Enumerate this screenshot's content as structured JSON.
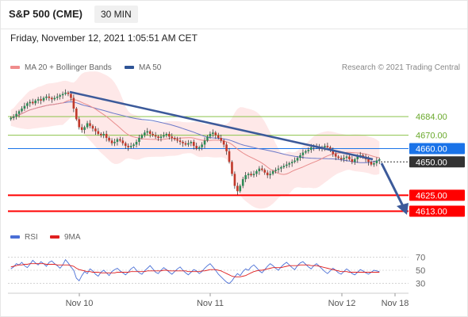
{
  "header": {
    "title": "S&P 500 (CME)",
    "interval": "30 MIN",
    "timestamp": "Friday, November 12, 2021 1:05:51 AM CET"
  },
  "legend": {
    "ma20_label": "MA 20 + Bollinger Bands",
    "ma50_label": "MA 50",
    "research": "Research © 2021 Trading Central",
    "rsi_label": "RSI",
    "ma9_label": "9MA"
  },
  "colors": {
    "candle_up": "#2e8b57",
    "candle_down": "#c0392b",
    "bollinger_fill": "#fde0e0",
    "ma20": "#e88c8c",
    "ma50": "#6a78c8",
    "trendline": "#3c5a9a",
    "support": "#ff0000",
    "resistance_blue": "#1a73e8",
    "resistance_green": "#8bc34a",
    "current_price": "#333333",
    "rsi_line": "#4a6fd6",
    "rsi_ma": "#e02020"
  },
  "chart_data": {
    "type": "candlestick",
    "y_range": [
      4602,
      4712
    ],
    "levels": [
      {
        "value": 4684.0,
        "label": "4684.00",
        "kind": "resistance-green"
      },
      {
        "value": 4670.0,
        "label": "4670.00",
        "kind": "resistance-green"
      },
      {
        "value": 4660.0,
        "label": "4660.00",
        "kind": "resistance-blue"
      },
      {
        "value": 4650.0,
        "label": "4650.00",
        "kind": "current-price"
      },
      {
        "value": 4625.0,
        "label": "4625.00",
        "kind": "support"
      },
      {
        "value": 4613.0,
        "label": "4613.00",
        "kind": "support"
      }
    ],
    "x_labels": [
      "Nov 10",
      "Nov 11",
      "Nov 12",
      "Nov 18"
    ],
    "close": [
      4683,
      4684,
      4686,
      4688,
      4690,
      4692,
      4694,
      4695,
      4694,
      4696,
      4697,
      4696,
      4698,
      4699,
      4698,
      4697,
      4698,
      4699,
      4700,
      4701,
      4702,
      4701,
      4698,
      4690,
      4682,
      4676,
      4674,
      4676,
      4679,
      4677,
      4675,
      4673,
      4671,
      4670,
      4671,
      4668,
      4666,
      4664,
      4665,
      4667,
      4666,
      4664,
      4662,
      4661,
      4662,
      4663,
      4665,
      4668,
      4670,
      4672,
      4673,
      4671,
      4670,
      4669,
      4668,
      4669,
      4670,
      4671,
      4669,
      4668,
      4667,
      4666,
      4665,
      4664,
      4663,
      4664,
      4665,
      4662,
      4660,
      4661,
      4663,
      4666,
      4669,
      4671,
      4672,
      4670,
      4668,
      4666,
      4663,
      4658,
      4650,
      4641,
      4632,
      4628,
      4632,
      4637,
      4640,
      4641,
      4640,
      4641,
      4643,
      4645,
      4644,
      4642,
      4640,
      4641,
      4643,
      4644,
      4645,
      4646,
      4647,
      4648,
      4649,
      4650,
      4651,
      4653,
      4655,
      4657,
      4658,
      4659,
      4661,
      4662,
      4661,
      4660,
      4661,
      4662,
      4661,
      4659,
      4656,
      4654,
      4653,
      4652,
      4653,
      4654,
      4652,
      4650,
      4652,
      4654,
      4655,
      4654,
      4652,
      4650,
      4648,
      4649,
      4651,
      4652
    ],
    "yticks_rsi": [
      70,
      50,
      30
    ],
    "rsi_range": [
      20,
      80
    ],
    "rsi": [
      52,
      55,
      60,
      58,
      62,
      57,
      54,
      59,
      65,
      61,
      58,
      63,
      60,
      56,
      62,
      64,
      60,
      57,
      53,
      58,
      66,
      61,
      55,
      50,
      38,
      34,
      42,
      48,
      45,
      52,
      49,
      44,
      41,
      47,
      50,
      46,
      42,
      48,
      51,
      53,
      49,
      46,
      43,
      47,
      52,
      55,
      50,
      46,
      44,
      49,
      53,
      57,
      52,
      47,
      45,
      50,
      54,
      51,
      47,
      44,
      48,
      52,
      55,
      50,
      46,
      43,
      47,
      51,
      49,
      45,
      48,
      53,
      57,
      60,
      55,
      50,
      44,
      40,
      36,
      32,
      30,
      34,
      40,
      45,
      42,
      48,
      52,
      50,
      55,
      58,
      54,
      49,
      46,
      51,
      56,
      60,
      57,
      53,
      50,
      55,
      59,
      62,
      58,
      54,
      51,
      57,
      61,
      63,
      59,
      55,
      52,
      57,
      60,
      56,
      52,
      48,
      45,
      49,
      53,
      50,
      46,
      44,
      48,
      52,
      49,
      45,
      43,
      47,
      51,
      49,
      46,
      44,
      47,
      50,
      49,
      48
    ],
    "rsi_ma9": [
      55,
      56,
      57,
      58,
      58,
      59,
      59,
      60,
      60,
      60,
      60,
      60,
      60,
      59,
      59,
      59,
      59,
      58,
      58,
      58,
      58,
      58,
      57,
      56,
      53,
      51,
      50,
      49,
      48,
      48,
      47,
      47,
      47,
      46,
      46,
      46,
      46,
      46,
      46,
      47,
      47,
      47,
      47,
      47,
      48,
      48,
      48,
      48,
      48,
      48,
      49,
      49,
      49,
      49,
      49,
      49,
      50,
      50,
      49,
      49,
      49,
      49,
      49,
      49,
      49,
      48,
      48,
      48,
      48,
      48,
      49,
      49,
      50,
      51,
      51,
      51,
      50,
      49,
      47,
      45,
      43,
      41,
      40,
      40,
      40,
      41,
      42,
      44,
      46,
      48,
      49,
      50,
      50,
      51,
      52,
      53,
      54,
      54,
      54,
      54,
      55,
      56,
      57,
      57,
      57,
      57,
      58,
      58,
      58,
      58,
      57,
      57,
      57,
      56,
      55,
      54,
      53,
      52,
      51,
      50,
      49,
      48,
      48,
      48,
      47,
      47,
      47,
      47,
      47,
      47,
      47,
      47,
      47,
      47,
      47,
      47
    ]
  }
}
